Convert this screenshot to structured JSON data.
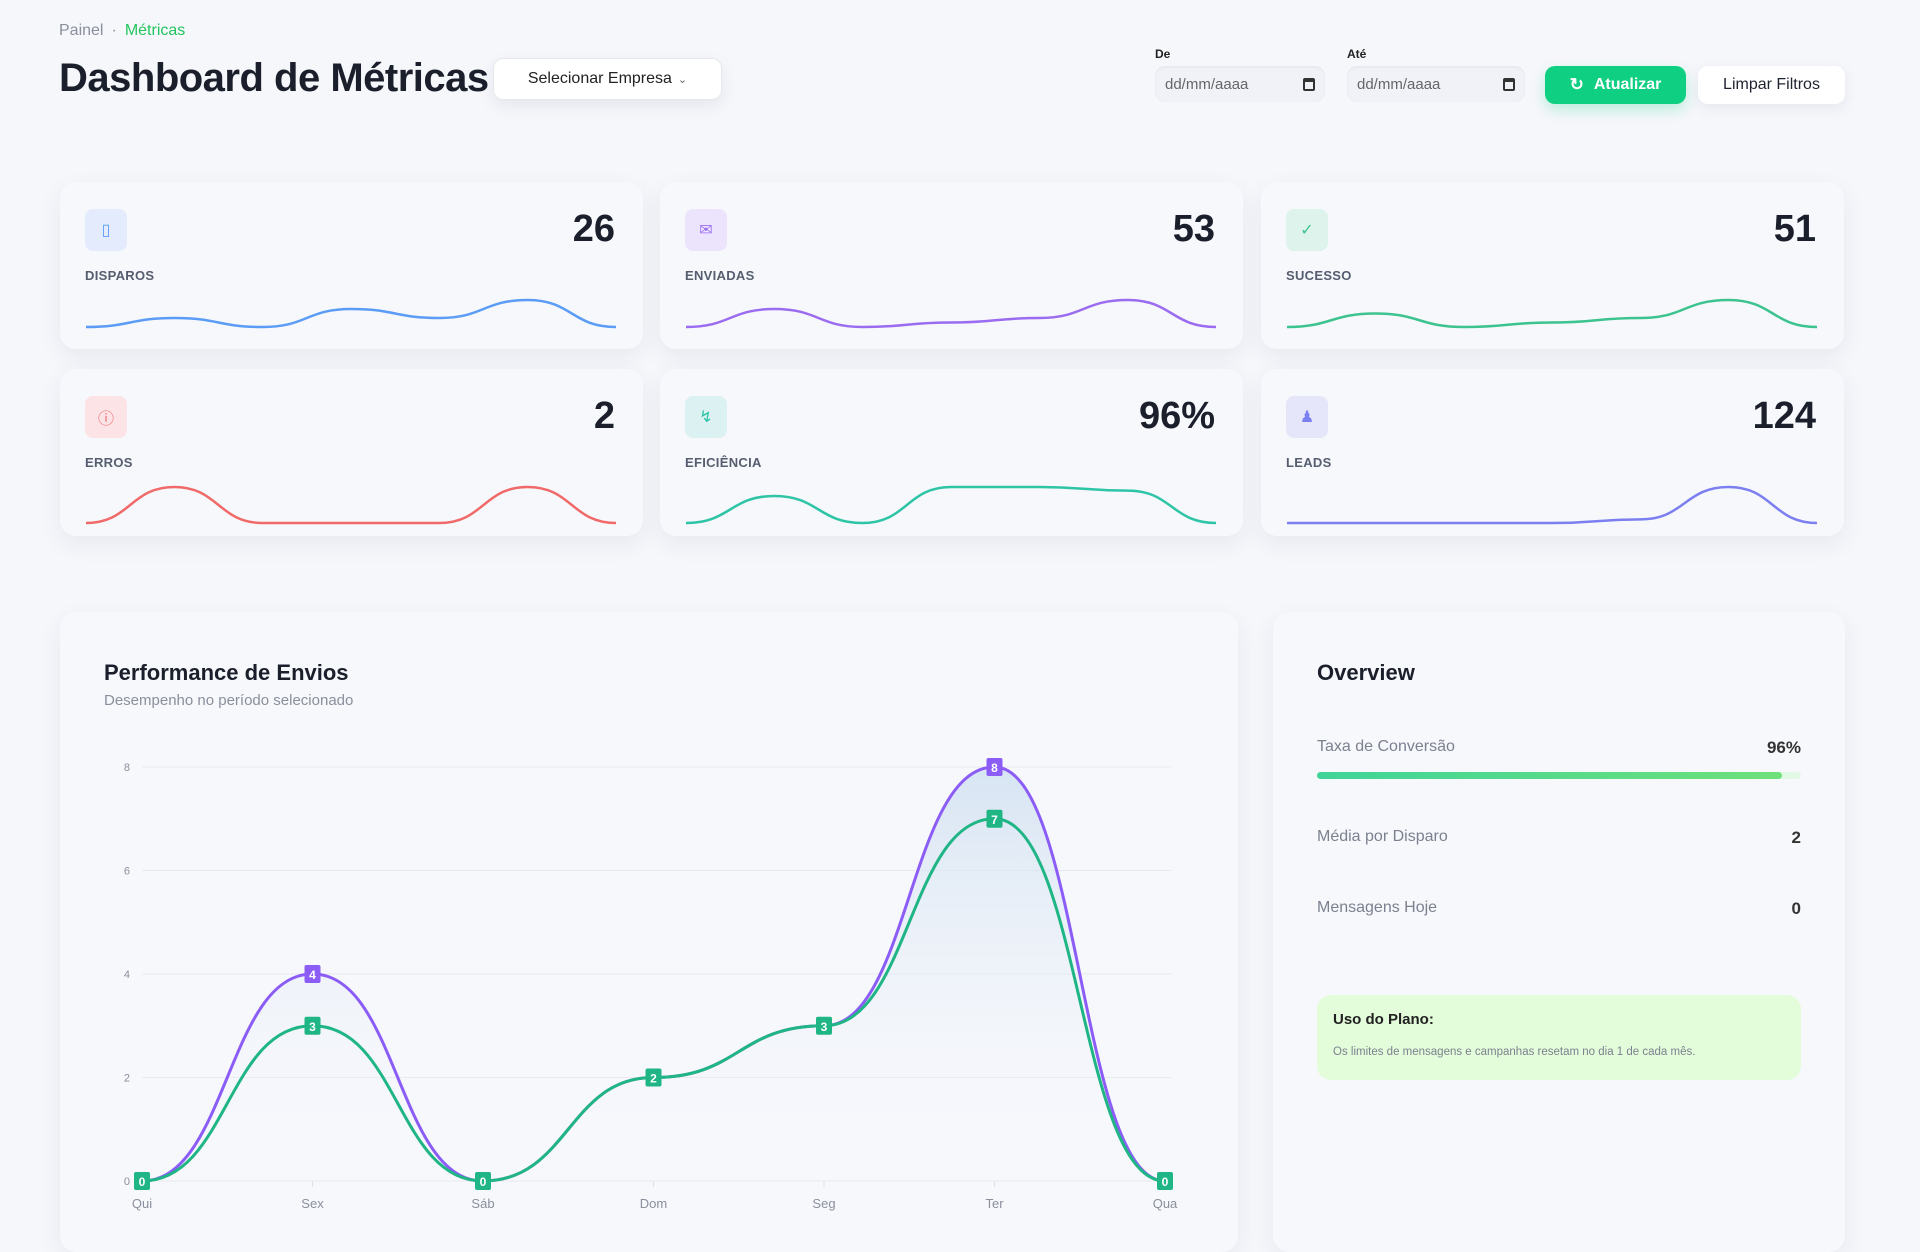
{
  "breadcrumb": {
    "parent": "Painel",
    "separator": "·",
    "current": "Métricas"
  },
  "header": {
    "title": "Dashboard de Métricas",
    "company_select": "Selecionar Empresa",
    "from_label": "De",
    "to_label": "Até",
    "from_placeholder": "dd/mm/aaaa",
    "to_placeholder": "dd/mm/aaaa",
    "refresh_label": "Atualizar",
    "clear_label": "Limpar Filtros"
  },
  "colors": {
    "accent": "#0fcf82",
    "purple": "#8b5cf6",
    "green": "#1fb584",
    "blue": "#5b9cf6",
    "red": "#f06a6a",
    "teal": "#2ec4a6",
    "indigo": "#7b7ff0"
  },
  "kpis": [
    {
      "label": "DISPAROS",
      "value": "26",
      "icon": "smartphone-icon",
      "color": "#5b9cf6",
      "bg": "#e3ebfd",
      "spark": [
        1,
        2,
        1,
        3,
        2,
        4,
        1
      ]
    },
    {
      "label": "ENVIADAS",
      "value": "53",
      "icon": "mail-icon",
      "color": "#9b6cf0",
      "bg": "#ece4fd",
      "spark": [
        1,
        3,
        1,
        1.5,
        2,
        4,
        1
      ]
    },
    {
      "label": "SUCESSO",
      "value": "51",
      "icon": "check-icon",
      "color": "#3cc38f",
      "bg": "#ddf3ec",
      "spark": [
        1,
        2.5,
        1,
        1.5,
        2,
        4,
        1
      ]
    },
    {
      "label": "ERROS",
      "value": "2",
      "icon": "alert-circle-icon",
      "color": "#f06a6a",
      "bg": "#fbe3e6",
      "spark": [
        0,
        1,
        0,
        0,
        0,
        1,
        0
      ]
    },
    {
      "label": "EFICIÊNCIA",
      "value": "96%",
      "icon": "zap-icon",
      "color": "#2ec4a6",
      "bg": "#dcf1f1",
      "spark": [
        0,
        0.75,
        0,
        1,
        1,
        0.9,
        0
      ]
    },
    {
      "label": "LEADS",
      "value": "124",
      "icon": "users-icon",
      "color": "#7b7ff0",
      "bg": "#e6e6fb",
      "spark": [
        0,
        0,
        0,
        0,
        0.1,
        1,
        0
      ]
    }
  ],
  "performance": {
    "title": "Performance de Envios",
    "subtitle": "Desempenho no período selecionado"
  },
  "chart_data": {
    "type": "line",
    "categories": [
      "Qui",
      "Sex",
      "Sáb",
      "Dom",
      "Seg",
      "Ter",
      "Qua"
    ],
    "yticks": [
      "0",
      "2",
      "4",
      "6",
      "8"
    ],
    "ylim": [
      0,
      8
    ],
    "grid": true,
    "series": [
      {
        "values": [
          0,
          4,
          0,
          2,
          3,
          8,
          0
        ],
        "color": "#8b5cf6"
      },
      {
        "values": [
          0,
          3,
          0,
          2,
          3,
          7,
          0
        ],
        "color": "#1fb584"
      }
    ]
  },
  "overview": {
    "title": "Overview",
    "conversion_label": "Taxa de Conversão",
    "conversion_value": "96%",
    "conversion_fraction": 0.96,
    "avg_label": "Média por Disparo",
    "avg_value": "2",
    "today_label": "Mensagens Hoje",
    "today_value": "0",
    "plan_title": "Uso do Plano:",
    "plan_text": "Os limites de mensagens e campanhas resetam no dia 1 de cada mês."
  }
}
